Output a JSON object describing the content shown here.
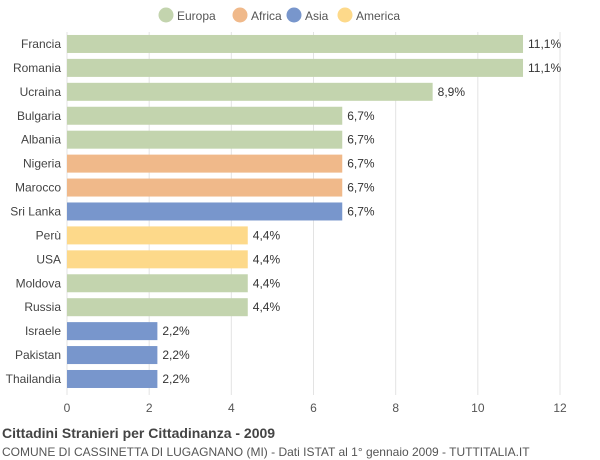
{
  "chart_data": {
    "type": "bar",
    "orientation": "horizontal",
    "title": "Cittadini Stranieri per Cittadinanza - 2009",
    "subtitle": "COMUNE DI CASSINETTA DI LUGAGNANO (MI) - Dati ISTAT al 1° gennaio 2009 - TUTTITALIA.IT",
    "xlabel": "",
    "ylabel": "",
    "xlim": [
      0,
      12
    ],
    "xticks": [
      0,
      2,
      4,
      6,
      8,
      10,
      12
    ],
    "grid": true,
    "legend_position": "top",
    "legend": [
      {
        "name": "Europa",
        "color": "#c3d4ae"
      },
      {
        "name": "Africa",
        "color": "#f0b98a"
      },
      {
        "name": "Asia",
        "color": "#7896cc"
      },
      {
        "name": "America",
        "color": "#fdd98a"
      }
    ],
    "categories": [
      "Francia",
      "Romania",
      "Ucraina",
      "Bulgaria",
      "Albania",
      "Nigeria",
      "Marocco",
      "Sri Lanka",
      "Perù",
      "USA",
      "Moldova",
      "Russia",
      "Israele",
      "Pakistan",
      "Thailandia"
    ],
    "values": [
      11.1,
      11.1,
      8.9,
      6.7,
      6.7,
      6.7,
      6.7,
      6.7,
      4.4,
      4.4,
      4.4,
      4.4,
      2.2,
      2.2,
      2.2
    ],
    "value_labels": [
      "11,1%",
      "11,1%",
      "8,9%",
      "6,7%",
      "6,7%",
      "6,7%",
      "6,7%",
      "6,7%",
      "4,4%",
      "4,4%",
      "4,4%",
      "4,4%",
      "2,2%",
      "2,2%",
      "2,2%"
    ],
    "groups": [
      "Europa",
      "Europa",
      "Europa",
      "Europa",
      "Europa",
      "Africa",
      "Africa",
      "Asia",
      "America",
      "America",
      "Europa",
      "Europa",
      "Asia",
      "Asia",
      "Asia"
    ]
  }
}
